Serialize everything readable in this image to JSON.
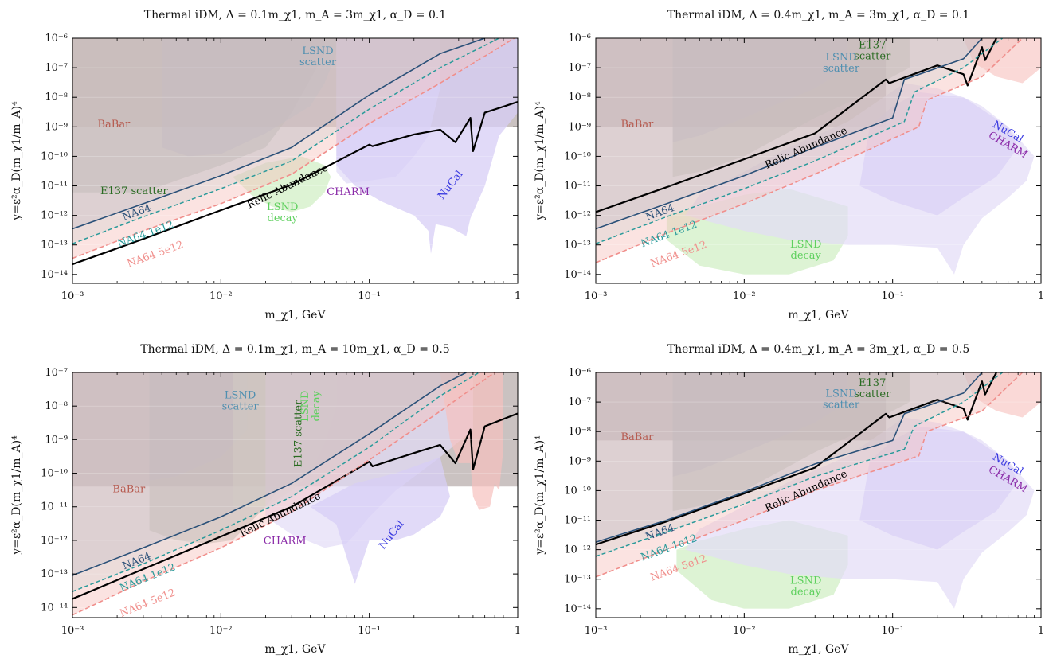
{
  "chart_data": [
    {
      "type": "area",
      "title": "Thermal iDM, Δ = 0.1m_χ1, m_A = 3m_χ1, α_D = 0.1",
      "xlabel": "m_χ1, GeV",
      "ylabel": "y=ε²α_D(m_χ1/m_A)⁴",
      "xlim": [
        0.001,
        1
      ],
      "ylim": [
        5e-15,
        1e-06
      ],
      "xscale": "log",
      "yscale": "log",
      "xticks": [
        "10⁻³",
        "10⁻²",
        "10⁻¹",
        "1"
      ],
      "yticks": [
        "10⁻¹⁴",
        "10⁻¹³",
        "10⁻¹²",
        "10⁻¹¹",
        "10⁻¹⁰",
        "10⁻⁹",
        "10⁻⁸",
        "10⁻⁷",
        "10⁻⁶"
      ],
      "series": [
        {
          "name": "Relic Abundance",
          "x": [
            0.001,
            0.003,
            0.01,
            0.03,
            0.1,
            0.105,
            0.2,
            0.3,
            0.38,
            0.48,
            0.5,
            0.6,
            1.0
          ],
          "y": [
            2.2e-14,
            1.6e-13,
            1.5e-12,
            1.1e-11,
            2.5e-10,
            2.2e-10,
            5.5e-10,
            8e-10,
            3e-10,
            2e-09,
            1.5e-10,
            3e-09,
            7e-09
          ]
        },
        {
          "name": "NA64",
          "x": [
            0.001,
            0.003,
            0.01,
            0.03,
            0.1,
            0.3,
            0.6
          ],
          "y": [
            3.5e-13,
            2.5e-12,
            2.2e-11,
            2e-10,
            1.2e-08,
            3e-07,
            1e-06
          ]
        },
        {
          "name": "NA64 1e12",
          "x": [
            0.001,
            0.003,
            0.01,
            0.03,
            0.1,
            0.3,
            0.75
          ],
          "y": [
            1.1e-13,
            9e-13,
            8e-12,
            7e-11,
            4e-09,
            1e-07,
            1e-06
          ]
        },
        {
          "name": "NA64 5e12",
          "x": [
            0.001,
            0.003,
            0.01,
            0.03,
            0.1,
            0.3,
            0.95
          ],
          "y": [
            3.5e-14,
            3e-13,
            2.5e-12,
            2.5e-11,
            1.3e-09,
            3e-08,
            1e-06
          ]
        }
      ],
      "regions": [
        "BaBar",
        "E137 scatter",
        "LSND scatter",
        "LSND decay",
        "CHARM",
        "NuCal"
      ]
    },
    {
      "type": "area",
      "title": "Thermal iDM, Δ = 0.4m_χ1, m_A = 3m_χ1, α_D = 0.1",
      "xlabel": "m_χ1, GeV",
      "ylabel": "y=ε²α_D(m_χ1/m_A)⁴",
      "xlim": [
        0.001,
        1
      ],
      "ylim": [
        5e-15,
        1e-06
      ],
      "xscale": "log",
      "yscale": "log",
      "xticks": [
        "10⁻³",
        "10⁻²",
        "10⁻¹",
        "1"
      ],
      "yticks": [
        "10⁻¹⁴",
        "10⁻¹³",
        "10⁻¹²",
        "10⁻¹¹",
        "10⁻¹⁰",
        "10⁻⁹",
        "10⁻⁸",
        "10⁻⁷",
        "10⁻⁶"
      ],
      "series": [
        {
          "name": "Relic Abundance",
          "x": [
            0.001,
            0.003,
            0.01,
            0.03,
            0.09,
            0.095,
            0.2,
            0.3,
            0.32,
            0.4,
            0.42,
            0.5
          ],
          "y": [
            1.3e-12,
            9e-12,
            8e-11,
            6e-10,
            4e-08,
            3e-08,
            1.2e-07,
            6e-08,
            2.5e-08,
            5e-07,
            1.8e-07,
            1e-06
          ]
        },
        {
          "name": "NA64",
          "x": [
            0.001,
            0.003,
            0.01,
            0.03,
            0.1,
            0.12,
            0.3,
            0.4
          ],
          "y": [
            3.5e-13,
            2.5e-12,
            2.2e-11,
            2e-10,
            2e-09,
            4e-08,
            2e-07,
            1e-06
          ]
        },
        {
          "name": "NA64 1e12",
          "x": [
            0.001,
            0.003,
            0.01,
            0.03,
            0.12,
            0.14,
            0.3,
            0.55
          ],
          "y": [
            1.1e-13,
            9e-13,
            8e-12,
            7e-11,
            1.5e-09,
            1.5e-08,
            1e-07,
            1e-06
          ]
        },
        {
          "name": "NA64 5e12",
          "x": [
            0.001,
            0.003,
            0.01,
            0.03,
            0.15,
            0.17,
            0.4,
            0.75
          ],
          "y": [
            2.5e-14,
            2.5e-13,
            2.5e-12,
            2.5e-11,
            1e-09,
            8e-09,
            5e-08,
            1e-06
          ]
        }
      ],
      "regions": [
        "BaBar",
        "E137 scatter",
        "LSND scatter",
        "LSND decay",
        "NuCal",
        "CHARM"
      ]
    },
    {
      "type": "area",
      "title": "Thermal iDM, Δ = 0.1m_χ1, m_A = 10m_χ1, α_D = 0.5",
      "xlabel": "m_χ1, GeV",
      "ylabel": "y=ε²α_D(m_χ1/m_A)⁴",
      "xlim": [
        0.001,
        1
      ],
      "ylim": [
        5e-15,
        1e-07
      ],
      "xscale": "log",
      "yscale": "log",
      "xticks": [
        "10⁻³",
        "10⁻²",
        "10⁻¹",
        "1"
      ],
      "yticks": [
        "10⁻¹⁴",
        "10⁻¹³",
        "10⁻¹²",
        "10⁻¹¹",
        "10⁻¹⁰",
        "10⁻⁹",
        "10⁻⁸",
        "10⁻⁷"
      ],
      "series": [
        {
          "name": "Relic Abundance",
          "x": [
            0.001,
            0.003,
            0.01,
            0.03,
            0.1,
            0.105,
            0.2,
            0.3,
            0.38,
            0.48,
            0.5,
            0.6,
            1.0
          ],
          "y": [
            1.8e-14,
            1.4e-13,
            1.3e-12,
            1e-11,
            2.2e-10,
            1.6e-10,
            4e-10,
            7e-10,
            2e-10,
            2e-09,
            1.3e-10,
            2.5e-09,
            6e-09
          ]
        },
        {
          "name": "NA64",
          "x": [
            0.001,
            0.003,
            0.01,
            0.03,
            0.1,
            0.3,
            0.45
          ],
          "y": [
            9e-14,
            6e-13,
            5e-12,
            5e-11,
            1.5e-09,
            4e-08,
            1e-07
          ]
        },
        {
          "name": "NA64 1e12",
          "x": [
            0.001,
            0.003,
            0.01,
            0.03,
            0.1,
            0.3,
            0.55
          ],
          "y": [
            3e-14,
            2e-13,
            2e-12,
            2e-11,
            6e-10,
            2e-08,
            1e-07
          ]
        },
        {
          "name": "NA64 5e12",
          "x": [
            0.001,
            0.003,
            0.01,
            0.03,
            0.1,
            0.3,
            0.7
          ],
          "y": [
            6e-15,
            6e-14,
            6e-13,
            7e-12,
            2.5e-10,
            7e-09,
            1e-07
          ]
        }
      ],
      "regions": [
        "BaBar",
        "E137 scatter",
        "LSND scatter",
        "LSND decay",
        "CHARM",
        "NuCal"
      ]
    },
    {
      "type": "area",
      "title": "Thermal iDM, Δ = 0.4m_χ1, m_A = 3m_χ1, α_D = 0.5",
      "xlabel": "m_χ1, GeV",
      "ylabel": "y=ε²α_D(m_χ1/m_A)⁴",
      "xlim": [
        0.001,
        1
      ],
      "ylim": [
        5e-15,
        1e-06
      ],
      "xscale": "log",
      "yscale": "log",
      "xticks": [
        "10⁻³",
        "10⁻²",
        "10⁻¹",
        "1"
      ],
      "yticks": [
        "10⁻¹⁴",
        "10⁻¹³",
        "10⁻¹²",
        "10⁻¹¹",
        "10⁻¹⁰",
        "10⁻⁹",
        "10⁻⁸",
        "10⁻⁷",
        "10⁻⁶"
      ],
      "series": [
        {
          "name": "Relic Abundance",
          "x": [
            0.001,
            0.003,
            0.01,
            0.03,
            0.09,
            0.095,
            0.2,
            0.3,
            0.32,
            0.4,
            0.42,
            0.5
          ],
          "y": [
            1.5e-12,
            9e-12,
            8e-11,
            6e-10,
            4e-08,
            3e-08,
            1.2e-07,
            6e-08,
            2.5e-08,
            5e-07,
            1.8e-07,
            1e-06
          ]
        },
        {
          "name": "NA64",
          "x": [
            0.001,
            0.003,
            0.01,
            0.03,
            0.1,
            0.12,
            0.3,
            0.4
          ],
          "y": [
            1.8e-12,
            1e-11,
            9e-11,
            8e-10,
            5e-09,
            4e-08,
            2e-07,
            1e-06
          ]
        },
        {
          "name": "NA64 1e12",
          "x": [
            0.001,
            0.003,
            0.01,
            0.03,
            0.12,
            0.14,
            0.3,
            0.55
          ],
          "y": [
            6e-13,
            4e-12,
            3.5e-11,
            3e-10,
            2.5e-09,
            1.5e-08,
            1e-07,
            1e-06
          ]
        },
        {
          "name": "NA64 5e12",
          "x": [
            0.001,
            0.003,
            0.01,
            0.03,
            0.15,
            0.17,
            0.4,
            0.75
          ],
          "y": [
            1.2e-13,
            1e-12,
            1e-11,
            1e-10,
            1.5e-09,
            1e-08,
            5e-08,
            1e-06
          ]
        }
      ],
      "regions": [
        "BaBar",
        "E137 scatter",
        "LSND scatter",
        "LSND decay",
        "NuCal",
        "CHARM"
      ]
    }
  ],
  "labels": {
    "babar": "BaBar",
    "e137": "E137 scatter",
    "e137_line1": "E137",
    "e137_line2": "scatter",
    "lsnd_scatter_1": "LSND",
    "lsnd_scatter_2": "scatter",
    "lsnd_decay_1": "LSND",
    "lsnd_decay_2": "decay",
    "charm": "CHARM",
    "nucal": "NuCal",
    "relic": "Relic Abundance",
    "na64": "NA64",
    "na64_1e12": "NA64 1e12",
    "na64_5e12": "NA64 5e12"
  },
  "colors": {
    "babar_fill": "#b8aeac",
    "e137_fill": "#9fb0a2",
    "lsnd_scatter_fill": "#a9b6c4",
    "lsnd_decay_fill": "#d7f1cc",
    "charm_fill": "#e2dcf7",
    "nucal_fill": "#d7cdf5",
    "na64_fill": "#8fa7bd",
    "na64_line": "#2a5078",
    "na64_1e12_fill": "#a6d3d6",
    "na64_1e12_line": "#2a9a9a",
    "na64_5e12_fill": "#f6c0bd",
    "na64_5e12_line": "#f08f8c",
    "relic_line": "#000000",
    "babar_text": "#b65a4f",
    "e137_text": "#2a6b22",
    "lsnd_scatter_text": "#4f8fb0",
    "lsnd_decay_text": "#5ed05e",
    "charm_text": "#8a2aa8",
    "nucal_text": "#3a3ae0",
    "na64_text": "#2a5078",
    "na64_1e12_text": "#2a9a9a",
    "na64_5e12_text": "#f08f8c"
  }
}
